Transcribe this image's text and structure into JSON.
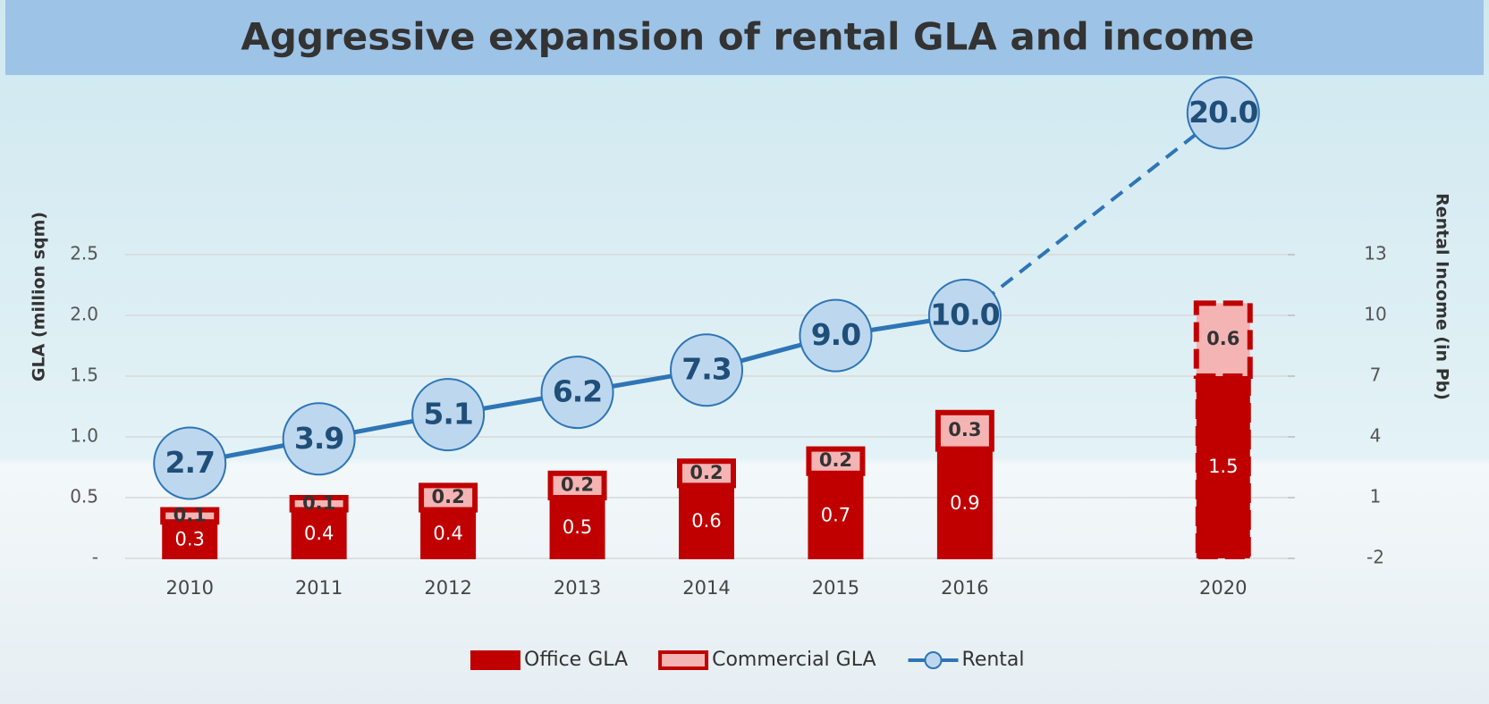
{
  "chart_data": {
    "type": "bar-line",
    "title": "Aggressive expansion of rental GLA and income",
    "y_label": "GLA (million sqm)",
    "y2_label": "Rental Income (in Pb)",
    "categories": [
      "2010",
      "2011",
      "2012",
      "2013",
      "2014",
      "2015",
      "2016",
      null,
      "2020"
    ],
    "series": [
      {
        "name": "Office GLA",
        "color": "#c00000",
        "type": "bar",
        "values": [
          0.3,
          0.4,
          0.4,
          0.5,
          0.6,
          0.7,
          0.9,
          null,
          1.5
        ]
      },
      {
        "name": "Commercial GLA",
        "color": "#f4b4b4",
        "type": "bar",
        "values": [
          0.1,
          0.1,
          0.2,
          0.2,
          0.2,
          0.2,
          0.3,
          null,
          0.6
        ]
      },
      {
        "name": "Rental",
        "color": "#2e75b6",
        "type": "line",
        "axis": "y2",
        "values": [
          2.7,
          3.9,
          5.1,
          6.2,
          7.3,
          9.0,
          10.0,
          null,
          20.0
        ],
        "value_labels": [
          "2.7",
          "3.9",
          "5.1",
          "6.2",
          "7.3",
          "9.0",
          "10.0",
          null,
          "20.0"
        ]
      }
    ],
    "ylim": [
      0,
      3.75
    ],
    "yticks": [
      {
        "value": 0,
        "label": "-"
      },
      0.5,
      {
        "value": 1,
        "label": "1.0"
      },
      1.5,
      {
        "value": 2,
        "label": "2.0"
      },
      2.5
    ],
    "y2lim": [
      -2,
      20.5
    ],
    "y2ticks": [
      -2,
      1,
      4,
      7,
      10,
      13
    ],
    "grid": true,
    "legend": "bottom"
  }
}
